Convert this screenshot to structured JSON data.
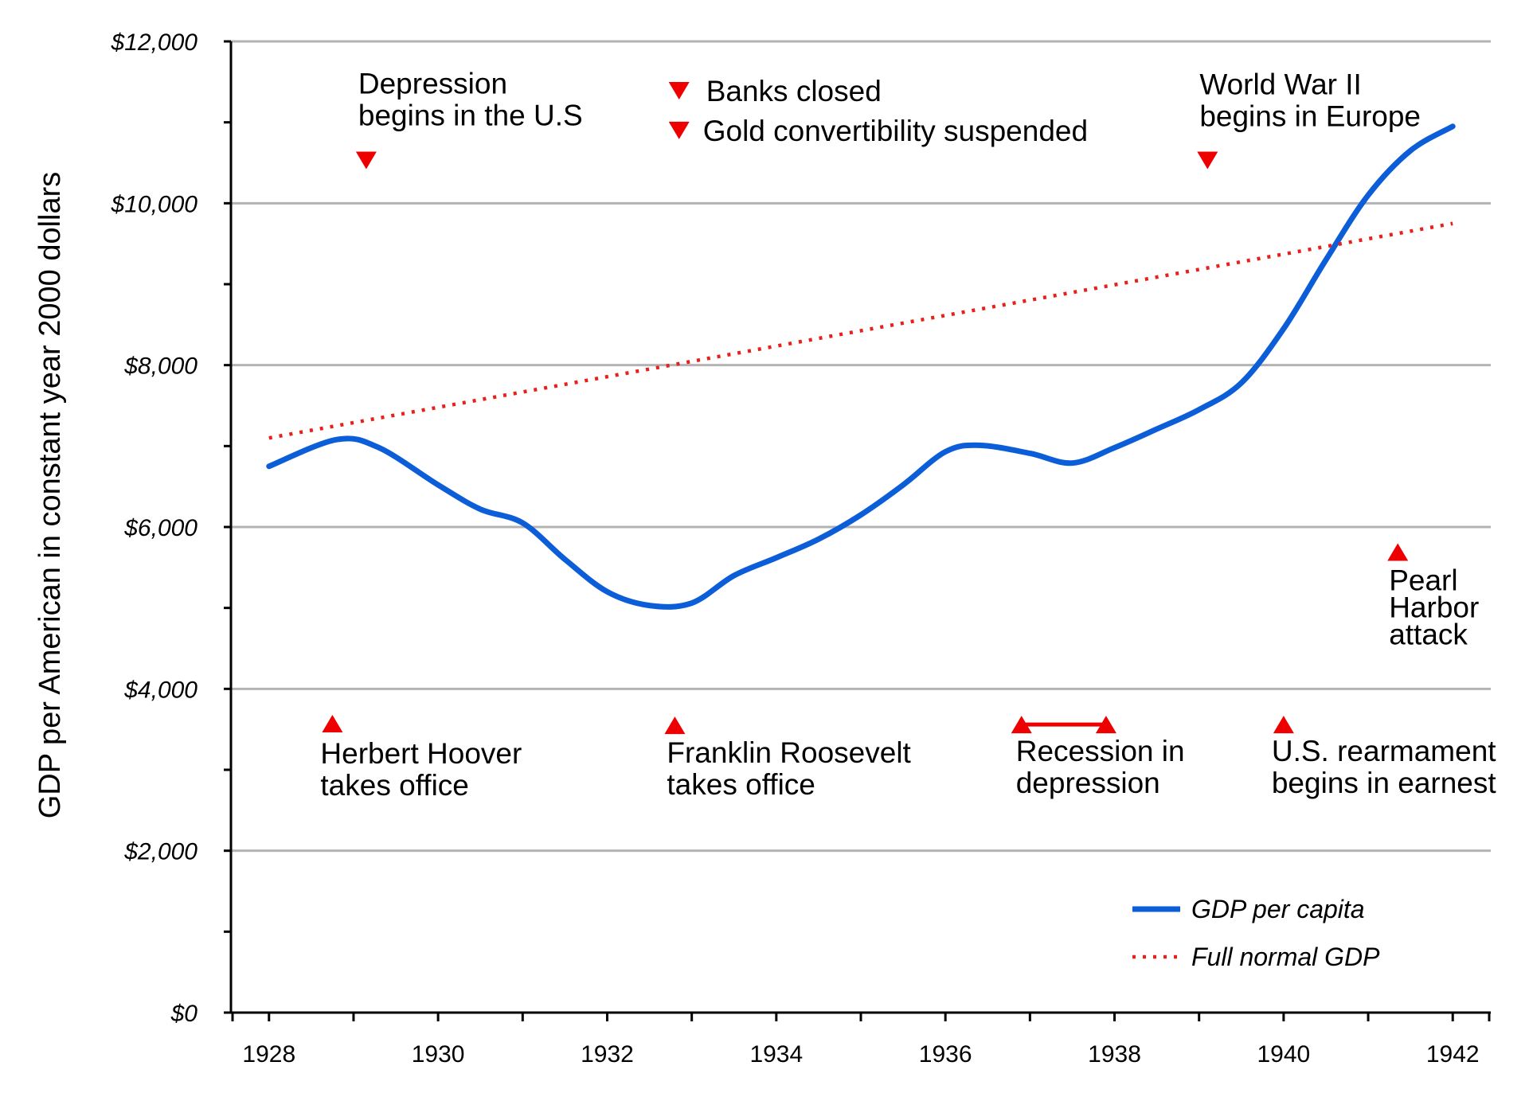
{
  "chart_data": {
    "type": "line",
    "ylabel": "GDP per American in constant year 2000 dollars",
    "xlabel": "",
    "xlim": [
      1927.55,
      1942.45
    ],
    "ylim": [
      0,
      12000
    ],
    "grid": true,
    "x_ticks": [
      "1928",
      "1930",
      "1932",
      "1934",
      "1936",
      "1938",
      "1940",
      "1942"
    ],
    "x_tick_values": [
      1928,
      1930,
      1932,
      1934,
      1936,
      1938,
      1940,
      1942
    ],
    "y_ticks": [
      "$0",
      "$2,000",
      "$4,000",
      "$6,000",
      "$8,000",
      "$10,000",
      "$12,000"
    ],
    "y_tick_values": [
      0,
      2000,
      4000,
      6000,
      8000,
      10000,
      12000
    ],
    "series": [
      {
        "name": "GDP per capita",
        "style": "solid",
        "color": "#0b5ed7",
        "x": [
          1928,
          1928.8,
          1929.3,
          1930,
          1930.5,
          1931,
          1931.5,
          1932,
          1932.5,
          1933,
          1933.5,
          1934,
          1934.5,
          1935,
          1935.5,
          1936,
          1936.4,
          1937,
          1937.5,
          1938,
          1938.5,
          1939,
          1939.5,
          1940,
          1940.5,
          1941,
          1941.5,
          1942
        ],
        "values": [
          6750,
          7080,
          6980,
          6520,
          6220,
          6050,
          5600,
          5200,
          5030,
          5060,
          5400,
          5620,
          5850,
          6150,
          6520,
          6930,
          7010,
          6910,
          6790,
          6980,
          7210,
          7450,
          7780,
          8450,
          9300,
          10100,
          10650,
          10950
        ]
      },
      {
        "name": "Full normal GDP",
        "style": "dotted",
        "color": "#e8201c",
        "x": [
          1928,
          1942
        ],
        "values": [
          7100,
          9750
        ]
      }
    ],
    "annotations": [
      {
        "id": "depression",
        "lines": [
          "Depression",
          "begins in the U.S"
        ],
        "x": 1929.15,
        "y": 10530,
        "marker": "down"
      },
      {
        "id": "banks",
        "lines": [
          "Banks closed"
        ],
        "x": 1932.85,
        "y": 11390,
        "marker": "down"
      },
      {
        "id": "gold",
        "lines": [
          "Gold convertibility suspended"
        ],
        "x": 1932.85,
        "y": 10900,
        "marker": "down"
      },
      {
        "id": "ww2",
        "lines": [
          "World War II",
          "begins in Europe"
        ],
        "x": 1939.1,
        "y": 10530,
        "marker": "down"
      },
      {
        "id": "pearl",
        "lines": [
          "Pearl",
          "Harbor",
          "attack"
        ],
        "x": 1941.35,
        "y": 5690,
        "marker": "up"
      },
      {
        "id": "hoover",
        "lines": [
          "Herbert Hoover",
          "takes office"
        ],
        "x": 1928.75,
        "y": 3570,
        "marker": "up"
      },
      {
        "id": "fdr",
        "lines": [
          "Franklin Roosevelt",
          "takes office"
        ],
        "x": 1932.8,
        "y": 3550,
        "marker": "up"
      },
      {
        "id": "recession",
        "lines": [
          "Recession in",
          "depression"
        ],
        "x": 1936.9,
        "x2": 1937.9,
        "y": 3560,
        "marker": "range"
      },
      {
        "id": "rearm",
        "lines": [
          "U.S. rearmament",
          "begins in earnest"
        ],
        "x": 1940,
        "y": 3560,
        "marker": "up"
      }
    ],
    "legend": {
      "position": "bottom-right",
      "entries": [
        "GDP per capita",
        "Full normal GDP"
      ]
    }
  }
}
